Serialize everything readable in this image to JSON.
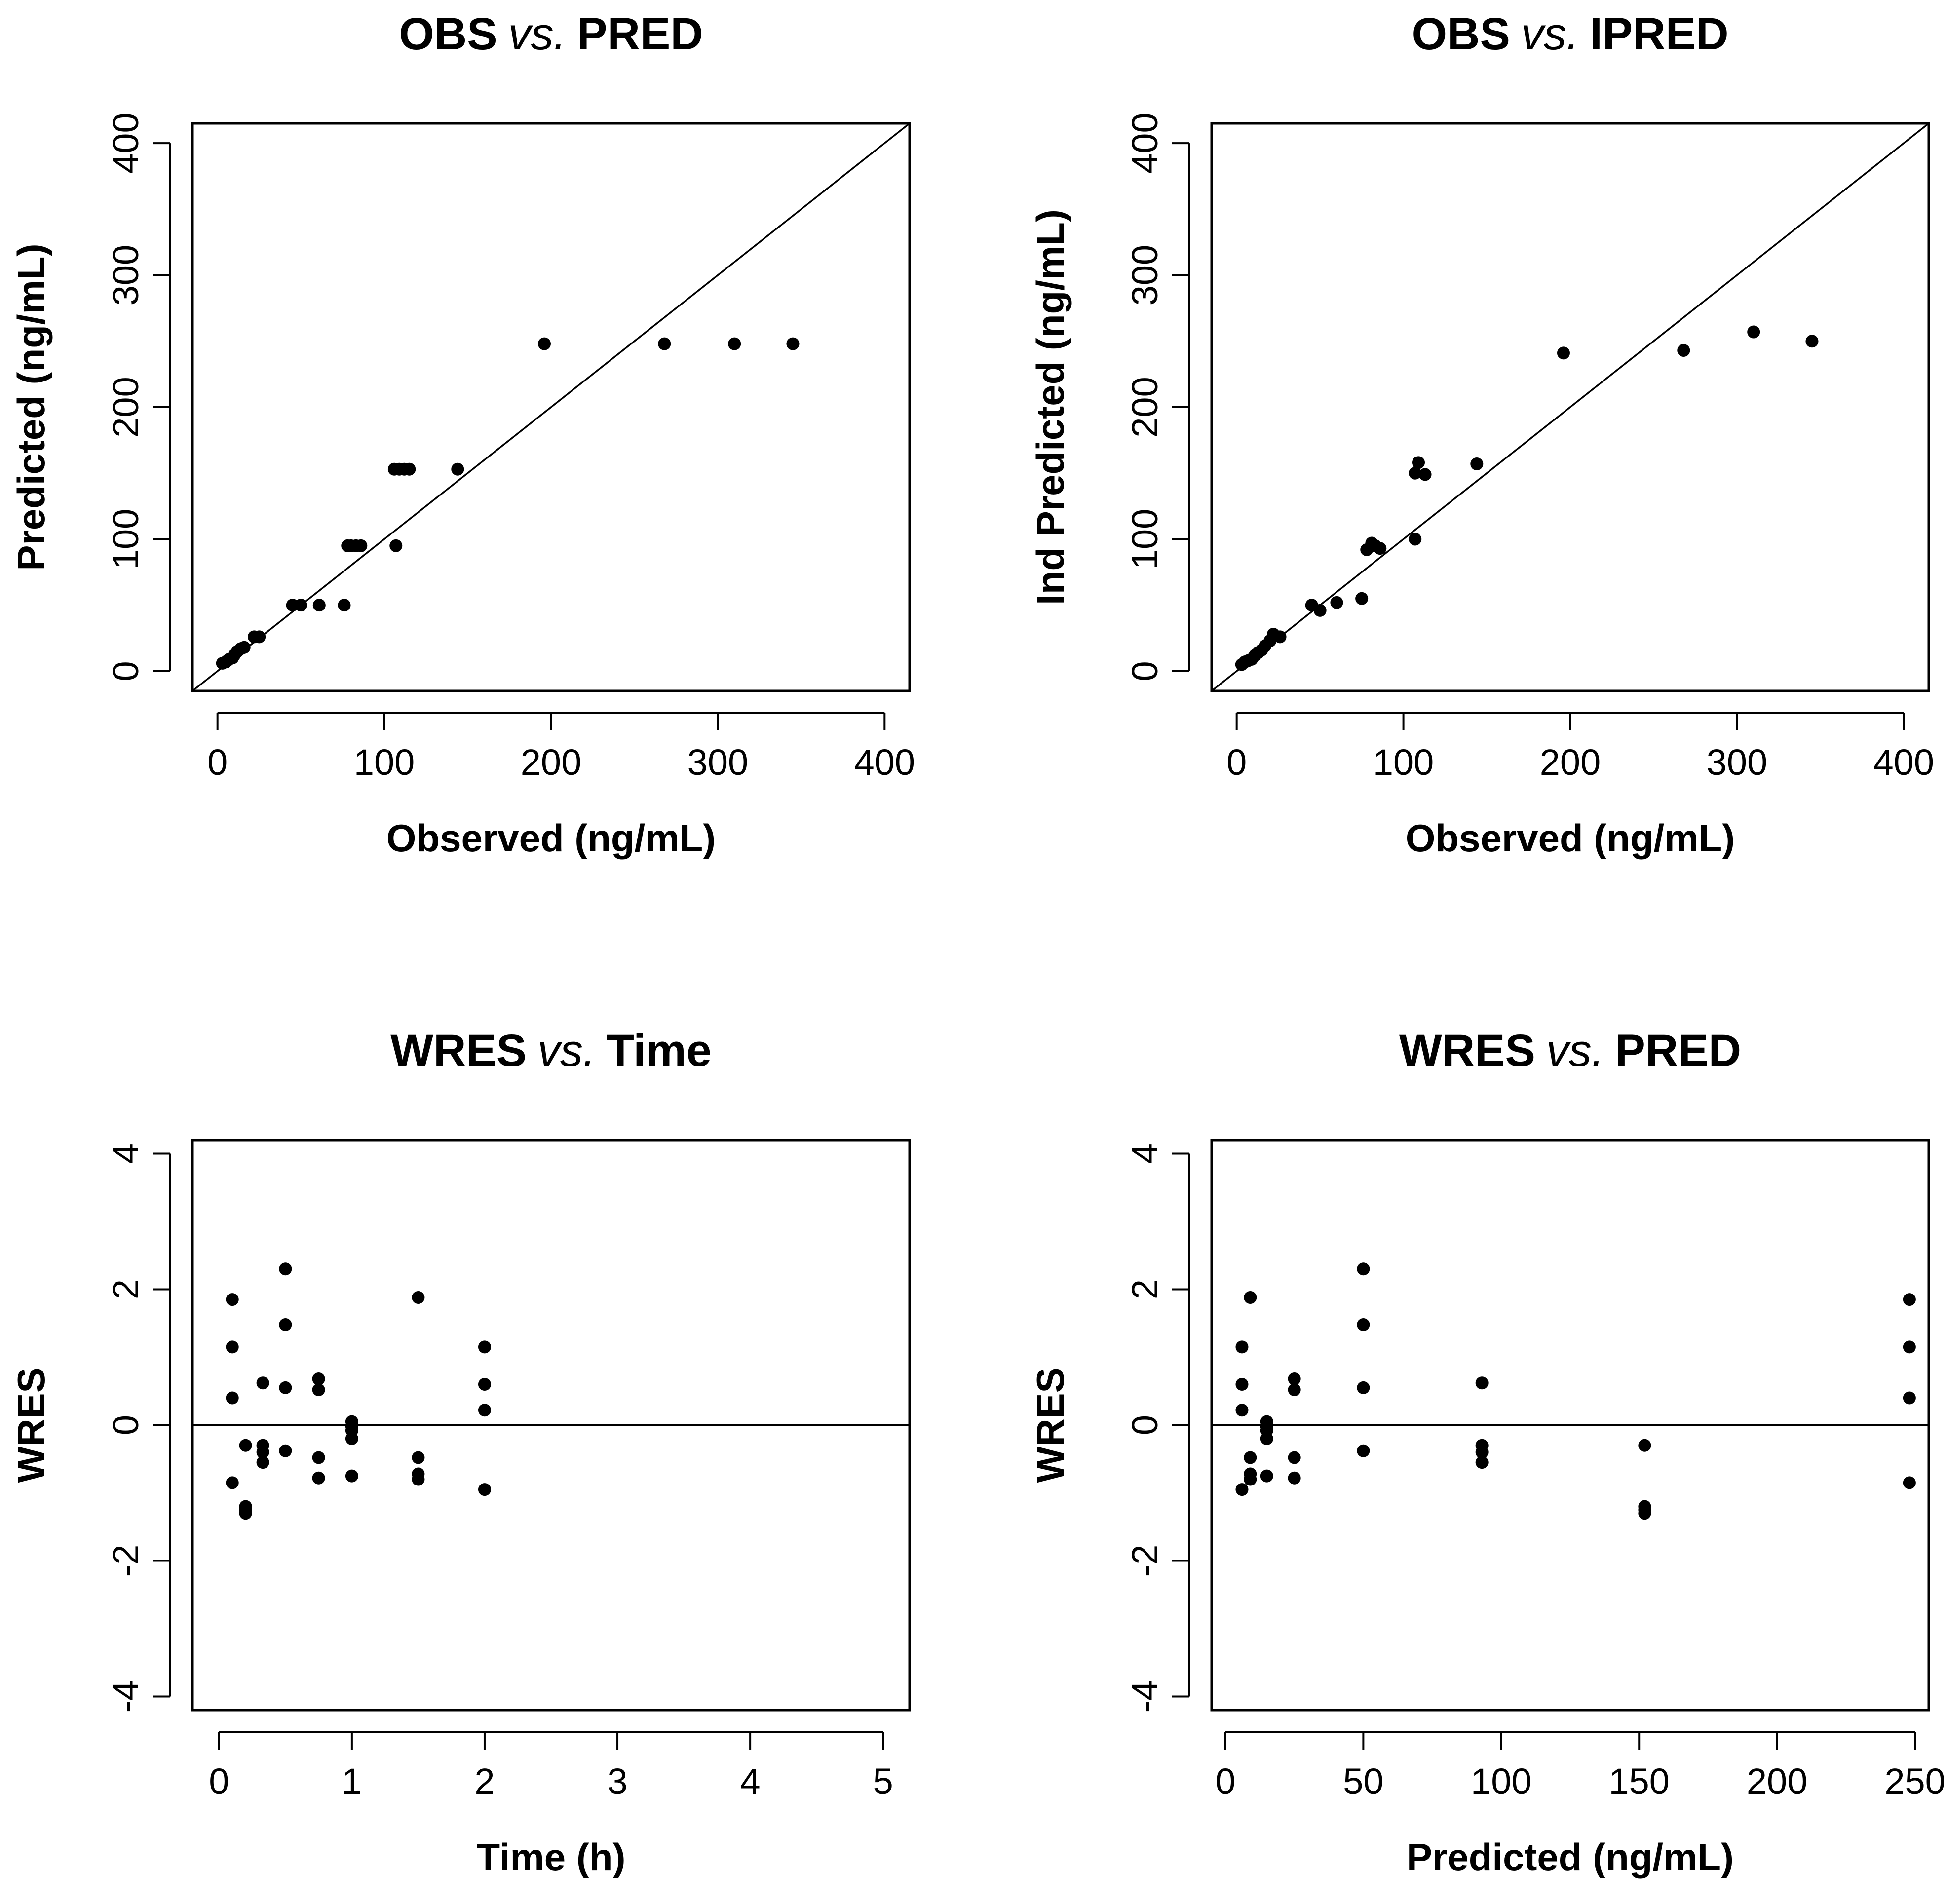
{
  "chart_data": [
    {
      "type": "scatter",
      "title": {
        "a": "OBS",
        "vs": "vs.",
        "b": "PRED"
      },
      "xlabel": "Observed (ng/mL)",
      "ylabel": "Predicted (ng/mL)",
      "xlim": [
        -15,
        415
      ],
      "ylim": [
        -15,
        415
      ],
      "xticks": [
        0,
        100,
        200,
        300,
        400
      ],
      "yticks": [
        0,
        100,
        200,
        300,
        400
      ],
      "reference_line": "identity",
      "points": [
        [
          3,
          6
        ],
        [
          5,
          7
        ],
        [
          6,
          8
        ],
        [
          7,
          9
        ],
        [
          9,
          10
        ],
        [
          10,
          12
        ],
        [
          12,
          15
        ],
        [
          14,
          17
        ],
        [
          16,
          18
        ],
        [
          22,
          26
        ],
        [
          25,
          26
        ],
        [
          45,
          50
        ],
        [
          50,
          50
        ],
        [
          61,
          50
        ],
        [
          76,
          50
        ],
        [
          78,
          95
        ],
        [
          80,
          95
        ],
        [
          83,
          95
        ],
        [
          86,
          95
        ],
        [
          107,
          95
        ],
        [
          106,
          153
        ],
        [
          109,
          153
        ],
        [
          112,
          153
        ],
        [
          115,
          153
        ],
        [
          144,
          153
        ],
        [
          196,
          248
        ],
        [
          268,
          248
        ],
        [
          310,
          248
        ],
        [
          345,
          248
        ]
      ]
    },
    {
      "type": "scatter",
      "title": {
        "a": "OBS",
        "vs": "vs.",
        "b": "IPRED"
      },
      "xlabel": "Observed (ng/mL)",
      "ylabel": "Ind Predicted (ng/mL)",
      "xlim": [
        -15,
        415
      ],
      "ylim": [
        -15,
        415
      ],
      "xticks": [
        0,
        100,
        200,
        300,
        400
      ],
      "yticks": [
        0,
        100,
        200,
        300,
        400
      ],
      "reference_line": "identity",
      "points": [
        [
          3,
          5
        ],
        [
          5,
          7
        ],
        [
          7,
          8
        ],
        [
          9,
          9
        ],
        [
          11,
          12
        ],
        [
          13,
          14
        ],
        [
          15,
          16
        ],
        [
          17,
          19
        ],
        [
          20,
          23
        ],
        [
          22,
          28
        ],
        [
          26,
          26
        ],
        [
          45,
          50
        ],
        [
          50,
          46
        ],
        [
          60,
          52
        ],
        [
          75,
          55
        ],
        [
          78,
          92
        ],
        [
          81,
          97
        ],
        [
          83,
          95
        ],
        [
          86,
          93
        ],
        [
          107,
          100
        ],
        [
          107,
          150
        ],
        [
          109,
          158
        ],
        [
          113,
          149
        ],
        [
          144,
          157
        ],
        [
          196,
          241
        ],
        [
          268,
          243
        ],
        [
          310,
          257
        ],
        [
          345,
          250
        ]
      ]
    },
    {
      "type": "scatter",
      "title": {
        "a": "WRES",
        "vs": "vs.",
        "b": "Time"
      },
      "xlabel": "Time (h)",
      "ylabel": "WRES",
      "xlim": [
        -0.2,
        5.2
      ],
      "ylim": [
        -4.2,
        4.2
      ],
      "xticks": [
        0,
        1,
        2,
        3,
        4,
        5
      ],
      "yticks": [
        -4,
        -2,
        0,
        2,
        4
      ],
      "reference_line": "zero",
      "points": [
        [
          0.1,
          1.85
        ],
        [
          0.1,
          1.15
        ],
        [
          0.1,
          0.4
        ],
        [
          0.1,
          -0.85
        ],
        [
          0.2,
          -0.3
        ],
        [
          0.2,
          -1.2
        ],
        [
          0.2,
          -1.25
        ],
        [
          0.2,
          -1.3
        ],
        [
          0.33,
          0.62
        ],
        [
          0.33,
          -0.3
        ],
        [
          0.33,
          -0.4
        ],
        [
          0.33,
          -0.55
        ],
        [
          0.5,
          2.3
        ],
        [
          0.5,
          1.48
        ],
        [
          0.5,
          0.55
        ],
        [
          0.5,
          -0.38
        ],
        [
          0.75,
          0.68
        ],
        [
          0.75,
          0.52
        ],
        [
          0.75,
          -0.48
        ],
        [
          0.75,
          -0.78
        ],
        [
          1.0,
          0.05
        ],
        [
          1.0,
          -0.02
        ],
        [
          1.0,
          -0.08
        ],
        [
          1.0,
          -0.2
        ],
        [
          1.0,
          -0.75
        ],
        [
          1.5,
          1.88
        ],
        [
          1.5,
          -0.48
        ],
        [
          1.5,
          -0.72
        ],
        [
          1.5,
          -0.8
        ],
        [
          2.0,
          1.15
        ],
        [
          2.0,
          0.6
        ],
        [
          2.0,
          0.22
        ],
        [
          2.0,
          -0.95
        ]
      ]
    },
    {
      "type": "scatter",
      "title": {
        "a": "WRES",
        "vs": "vs.",
        "b": "PRED"
      },
      "xlabel": "Predicted (ng/mL)",
      "ylabel": "WRES",
      "xlim": [
        -5,
        255
      ],
      "ylim": [
        -4.2,
        4.2
      ],
      "xticks": [
        0,
        50,
        100,
        150,
        200,
        250
      ],
      "yticks": [
        -4,
        -2,
        0,
        2,
        4
      ],
      "reference_line": "zero",
      "points": [
        [
          6,
          1.15
        ],
        [
          6,
          0.6
        ],
        [
          6,
          0.22
        ],
        [
          6,
          -0.95
        ],
        [
          9,
          1.88
        ],
        [
          9,
          -0.48
        ],
        [
          9,
          -0.72
        ],
        [
          9,
          -0.8
        ],
        [
          15,
          0.05
        ],
        [
          15,
          -0.02
        ],
        [
          15,
          -0.08
        ],
        [
          15,
          -0.2
        ],
        [
          15,
          -0.75
        ],
        [
          25,
          0.68
        ],
        [
          25,
          0.52
        ],
        [
          25,
          -0.48
        ],
        [
          25,
          -0.78
        ],
        [
          50,
          2.3
        ],
        [
          50,
          1.48
        ],
        [
          50,
          0.55
        ],
        [
          50,
          -0.38
        ],
        [
          93,
          0.62
        ],
        [
          93,
          -0.3
        ],
        [
          93,
          -0.4
        ],
        [
          93,
          -0.55
        ],
        [
          152,
          -0.3
        ],
        [
          152,
          -1.2
        ],
        [
          152,
          -1.25
        ],
        [
          152,
          -1.3
        ],
        [
          248,
          1.85
        ],
        [
          248,
          1.15
        ],
        [
          248,
          0.4
        ],
        [
          248,
          -0.85
        ]
      ]
    }
  ]
}
